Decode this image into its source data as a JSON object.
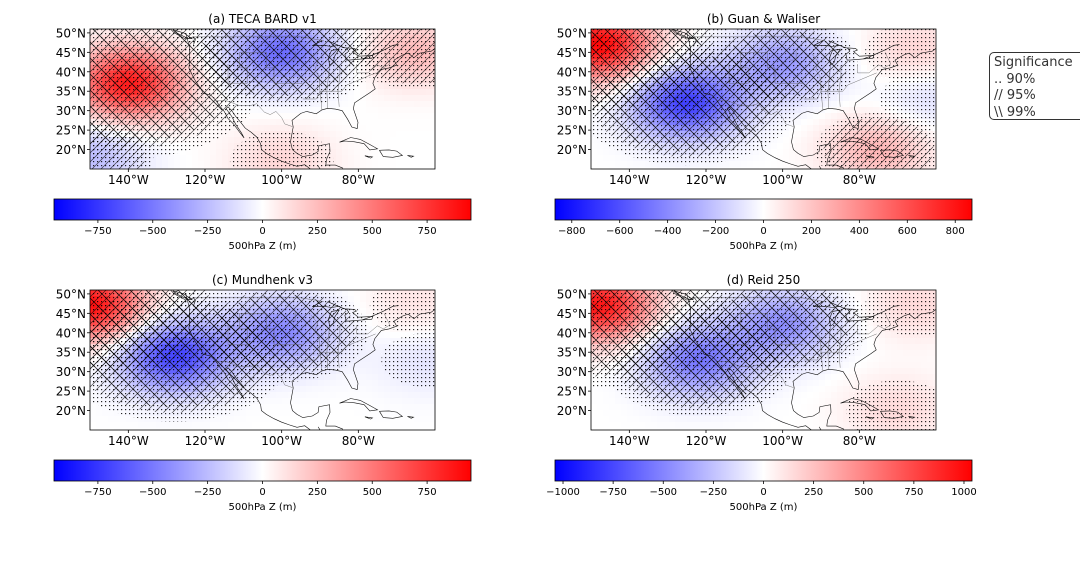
{
  "chart_data": [
    {
      "type": "heatmap",
      "title": "(a) TECA BARD v1",
      "colorbar": {
        "label": "500hPa Z (m)",
        "vmin": -950,
        "vmax": 950,
        "ticks": [
          -750,
          -500,
          -250,
          0,
          250,
          500,
          750
        ],
        "cmap": "bwr"
      },
      "lon_range": [
        -150,
        -60
      ],
      "lat_range": [
        15,
        51
      ],
      "lon_ticks": [
        -140,
        -120,
        -100,
        -80
      ],
      "lat_ticks": [
        20,
        25,
        30,
        35,
        40,
        45,
        50
      ],
      "anomaly_centers": [
        {
          "lon": -140,
          "lat": 37,
          "value": 850
        },
        {
          "lon": -100,
          "lat": 45,
          "value": -550
        },
        {
          "lon": -65,
          "lat": 45,
          "value": 250
        },
        {
          "lon": -150,
          "lat": 18,
          "value": -250
        },
        {
          "lon": -100,
          "lat": 17,
          "value": 150
        }
      ]
    },
    {
      "type": "heatmap",
      "title": "(b) Guan & Waliser",
      "colorbar": {
        "label": "500hPa Z (m)",
        "vmin": -870,
        "vmax": 870,
        "ticks": [
          -800,
          -600,
          -400,
          -200,
          0,
          200,
          400,
          600,
          800
        ],
        "cmap": "bwr"
      },
      "lon_range": [
        -150,
        -60
      ],
      "lat_range": [
        15,
        51
      ],
      "lon_ticks": [
        -140,
        -120,
        -100,
        -80
      ],
      "lat_ticks": [
        20,
        25,
        30,
        35,
        40,
        45,
        50
      ],
      "anomaly_centers": [
        {
          "lon": -148,
          "lat": 47,
          "value": 850
        },
        {
          "lon": -125,
          "lat": 32,
          "value": -650
        },
        {
          "lon": -100,
          "lat": 42,
          "value": -350
        },
        {
          "lon": -75,
          "lat": 20,
          "value": 250
        },
        {
          "lon": -65,
          "lat": 45,
          "value": 150
        },
        {
          "lon": -62,
          "lat": 33,
          "value": -120
        }
      ]
    },
    {
      "type": "heatmap",
      "title": "(c) Mundhenk v3",
      "colorbar": {
        "label": "500hPa Z (m)",
        "vmin": -950,
        "vmax": 950,
        "ticks": [
          -750,
          -500,
          -250,
          0,
          250,
          500,
          750
        ],
        "cmap": "bwr"
      },
      "lon_range": [
        -150,
        -60
      ],
      "lat_range": [
        15,
        51
      ],
      "lon_ticks": [
        -140,
        -120,
        -100,
        -80
      ],
      "lat_ticks": [
        20,
        25,
        30,
        35,
        40,
        45,
        50
      ],
      "anomaly_centers": [
        {
          "lon": -150,
          "lat": 47,
          "value": 900
        },
        {
          "lon": -128,
          "lat": 34,
          "value": -700
        },
        {
          "lon": -100,
          "lat": 40,
          "value": -450
        },
        {
          "lon": -65,
          "lat": 47,
          "value": 100
        },
        {
          "lon": -62,
          "lat": 33,
          "value": -100
        }
      ]
    },
    {
      "type": "heatmap",
      "title": "(d) Reid 250",
      "colorbar": {
        "label": "500hPa Z (m)",
        "vmin": -1040,
        "vmax": 1040,
        "ticks": [
          -1000,
          -750,
          -500,
          -250,
          0,
          250,
          500,
          750,
          1000
        ],
        "cmap": "bwr"
      },
      "lon_range": [
        -150,
        -60
      ],
      "lat_range": [
        15,
        51
      ],
      "lon_ticks": [
        -140,
        -120,
        -100,
        -80
      ],
      "lat_ticks": [
        20,
        25,
        30,
        35,
        40,
        45,
        50
      ],
      "anomaly_centers": [
        {
          "lon": -148,
          "lat": 47,
          "value": 950
        },
        {
          "lon": -122,
          "lat": 33,
          "value": -550
        },
        {
          "lon": -100,
          "lat": 42,
          "value": -450
        },
        {
          "lon": -70,
          "lat": 20,
          "value": 150
        },
        {
          "lon": -65,
          "lat": 47,
          "value": 150
        }
      ]
    }
  ],
  "legend": {
    "title": "Significance",
    "items": [
      ".. 90%",
      "// 95%",
      "\\\\ 99%"
    ]
  }
}
